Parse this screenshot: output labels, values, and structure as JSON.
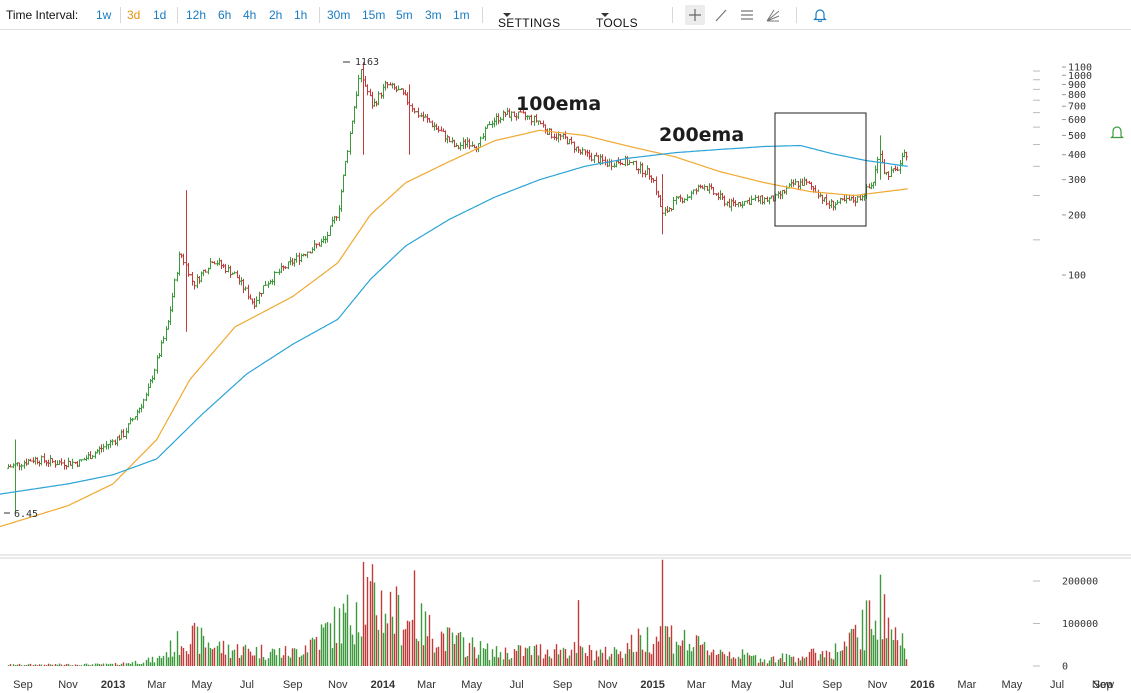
{
  "toolbar": {
    "time_interval_label": "Time Interval:",
    "intervals": [
      "1w",
      "3d",
      "1d",
      "12h",
      "6h",
      "4h",
      "2h",
      "1h",
      "30m",
      "15m",
      "5m",
      "3m",
      "1m"
    ],
    "active_interval": "3d",
    "settings_label": "SETTINGS",
    "tools_label": "TOOLS",
    "tool_icons": [
      "crosshair-icon",
      "trendline-icon",
      "horizontal-lines-icon",
      "fan-icon",
      "alert-bell-icon"
    ]
  },
  "chart_data": {
    "type": "candlestick",
    "scale": "log",
    "price_ticks": [
      1100,
      1000,
      900,
      800,
      700,
      600,
      500,
      400,
      300,
      200,
      100
    ],
    "volume_ticks": [
      200000,
      100000,
      0
    ],
    "x_labels": [
      "Sep",
      "Nov",
      "2013",
      "Mar",
      "May",
      "Jul",
      "Sep",
      "Nov",
      "2014",
      "Mar",
      "May",
      "Jul",
      "Sep",
      "Nov",
      "2015",
      "Mar",
      "May",
      "Jul",
      "Sep",
      "Nov",
      "2016",
      "Mar",
      "May",
      "Jul",
      "Sep",
      "Now"
    ],
    "year_labels": [
      "2013",
      "2014",
      "2015",
      "2016"
    ],
    "x_range": [
      "2012-08",
      "2016-10"
    ],
    "price_anchors": [
      [
        "2012-08-15",
        11
      ],
      [
        "2012-09-15",
        12
      ],
      [
        "2012-10-15",
        11.5
      ],
      [
        "2012-11-15",
        11.5
      ],
      [
        "2012-12-15",
        13.5
      ],
      [
        "2013-01-15",
        16
      ],
      [
        "2013-02-15",
        25
      ],
      [
        "2013-03-15",
        55
      ],
      [
        "2013-04-01",
        130
      ],
      [
        "2013-04-20",
        90
      ],
      [
        "2013-05-15",
        120
      ],
      [
        "2013-06-15",
        100
      ],
      [
        "2013-07-10",
        72
      ],
      [
        "2013-07-25",
        90
      ],
      [
        "2013-08-15",
        105
      ],
      [
        "2013-09-15",
        128
      ],
      [
        "2013-10-15",
        150
      ],
      [
        "2013-11-01",
        210
      ],
      [
        "2013-11-20",
        600
      ],
      [
        "2013-12-01",
        1050
      ],
      [
        "2013-12-18",
        700
      ],
      [
        "2014-01-05",
        900
      ],
      [
        "2014-01-25",
        820
      ],
      [
        "2014-02-15",
        650
      ],
      [
        "2014-03-01",
        600
      ],
      [
        "2014-03-25",
        500
      ],
      [
        "2014-04-10",
        430
      ],
      [
        "2014-04-25",
        470
      ],
      [
        "2014-05-10",
        440
      ],
      [
        "2014-05-25",
        580
      ],
      [
        "2014-06-15",
        640
      ],
      [
        "2014-07-10",
        625
      ],
      [
        "2014-07-30",
        590
      ],
      [
        "2014-08-15",
        510
      ],
      [
        "2014-09-05",
        480
      ],
      [
        "2014-09-25",
        410
      ],
      [
        "2014-10-15",
        385
      ],
      [
        "2014-11-01",
        360
      ],
      [
        "2014-11-20",
        375
      ],
      [
        "2014-12-10",
        350
      ],
      [
        "2014-12-31",
        315
      ],
      [
        "2015-01-14",
        200
      ],
      [
        "2015-02-01",
        235
      ],
      [
        "2015-02-20",
        250
      ],
      [
        "2015-03-10",
        285
      ],
      [
        "2015-03-25",
        255
      ],
      [
        "2015-04-15",
        225
      ],
      [
        "2015-05-15",
        237
      ],
      [
        "2015-06-15",
        240
      ],
      [
        "2015-07-10",
        285
      ],
      [
        "2015-07-25",
        290
      ],
      [
        "2015-08-10",
        265
      ],
      [
        "2015-08-25",
        225
      ],
      [
        "2015-09-15",
        232
      ],
      [
        "2015-10-05",
        240
      ],
      [
        "2015-10-25",
        285
      ],
      [
        "2015-11-04",
        420
      ],
      [
        "2015-11-11",
        320
      ],
      [
        "2015-11-25",
        330
      ],
      [
        "2015-12-08",
        400
      ],
      [
        "2015-12-12",
        415
      ]
    ],
    "spikes": [
      {
        "date": "2013-04-10",
        "high": 266,
        "low": 52
      },
      {
        "date": "2013-12-04",
        "high": 1163,
        "low": 400
      },
      {
        "date": "2014-02-05",
        "high": 900,
        "low": 400
      },
      {
        "date": "2015-01-14",
        "high": 320,
        "low": 160
      },
      {
        "date": "2015-11-04",
        "high": 500,
        "low": 300
      },
      {
        "date": "2012-08-20",
        "high": 15,
        "low": 6.45
      }
    ],
    "ema100_anchors": [
      [
        "2012-08-01",
        5.5
      ],
      [
        "2012-11-01",
        7
      ],
      [
        "2013-01-01",
        9
      ],
      [
        "2013-03-01",
        15
      ],
      [
        "2013-04-15",
        30
      ],
      [
        "2013-06-15",
        55
      ],
      [
        "2013-09-01",
        78
      ],
      [
        "2013-11-01",
        115
      ],
      [
        "2013-12-15",
        200
      ],
      [
        "2014-02-01",
        290
      ],
      [
        "2014-04-01",
        370
      ],
      [
        "2014-06-01",
        470
      ],
      [
        "2014-08-01",
        530
      ],
      [
        "2014-10-01",
        500
      ],
      [
        "2014-12-01",
        440
      ],
      [
        "2015-02-01",
        390
      ],
      [
        "2015-04-01",
        330
      ],
      [
        "2015-06-01",
        290
      ],
      [
        "2015-08-01",
        262
      ],
      [
        "2015-10-01",
        250
      ],
      [
        "2015-12-12",
        270
      ]
    ],
    "ema200_anchors": [
      [
        "2012-08-01",
        8
      ],
      [
        "2012-11-01",
        9
      ],
      [
        "2013-01-01",
        10
      ],
      [
        "2013-03-01",
        12
      ],
      [
        "2013-05-01",
        20
      ],
      [
        "2013-07-01",
        32
      ],
      [
        "2013-09-01",
        45
      ],
      [
        "2013-11-01",
        60
      ],
      [
        "2013-12-15",
        95
      ],
      [
        "2014-02-01",
        140
      ],
      [
        "2014-04-01",
        190
      ],
      [
        "2014-06-01",
        245
      ],
      [
        "2014-08-01",
        300
      ],
      [
        "2014-10-01",
        350
      ],
      [
        "2014-12-01",
        385
      ],
      [
        "2015-02-01",
        410
      ],
      [
        "2015-04-01",
        425
      ],
      [
        "2015-06-01",
        440
      ],
      [
        "2015-07-20",
        445
      ],
      [
        "2015-09-01",
        405
      ],
      [
        "2015-10-15",
        375
      ],
      [
        "2015-12-12",
        350
      ]
    ],
    "volume_anchors": [
      [
        "2012-08-01",
        3000
      ],
      [
        "2013-01-01",
        4000
      ],
      [
        "2013-03-01",
        15000
      ],
      [
        "2013-04-10",
        70000
      ],
      [
        "2013-06-01",
        40000
      ],
      [
        "2013-09-01",
        30000
      ],
      [
        "2013-11-20",
        120000
      ],
      [
        "2013-12-10",
        160000
      ],
      [
        "2014-02-01",
        110000
      ],
      [
        "2014-04-01",
        60000
      ],
      [
        "2014-06-01",
        30000
      ],
      [
        "2014-09-01",
        40000
      ],
      [
        "2014-11-01",
        28000
      ],
      [
        "2015-01-14",
        80000
      ],
      [
        "2015-03-01",
        45000
      ],
      [
        "2015-06-01",
        15000
      ],
      [
        "2015-08-01",
        25000
      ],
      [
        "2015-09-15",
        40000
      ],
      [
        "2015-11-04",
        130000
      ],
      [
        "2015-12-12",
        30000
      ]
    ],
    "volume_spikes": [
      [
        "2013-12-04",
        245000
      ],
      [
        "2014-02-12",
        225000
      ],
      [
        "2015-01-14",
        250000
      ],
      [
        "2015-11-04",
        215000
      ],
      [
        "2014-09-22",
        155000
      ],
      [
        "2013-11-26",
        150000
      ]
    ],
    "labels": {
      "max_label": "1163",
      "min_label": "6.45"
    },
    "annotations": [
      {
        "text": "100ema"
      },
      {
        "text": "200ema"
      }
    ],
    "colors": {
      "up": "#3c9a3c",
      "down": "#c23a3a",
      "ema100": "#f0a830",
      "ema200": "#2ba3d6",
      "grid": "#e6e6e6",
      "border": "#d0d0d0"
    }
  }
}
